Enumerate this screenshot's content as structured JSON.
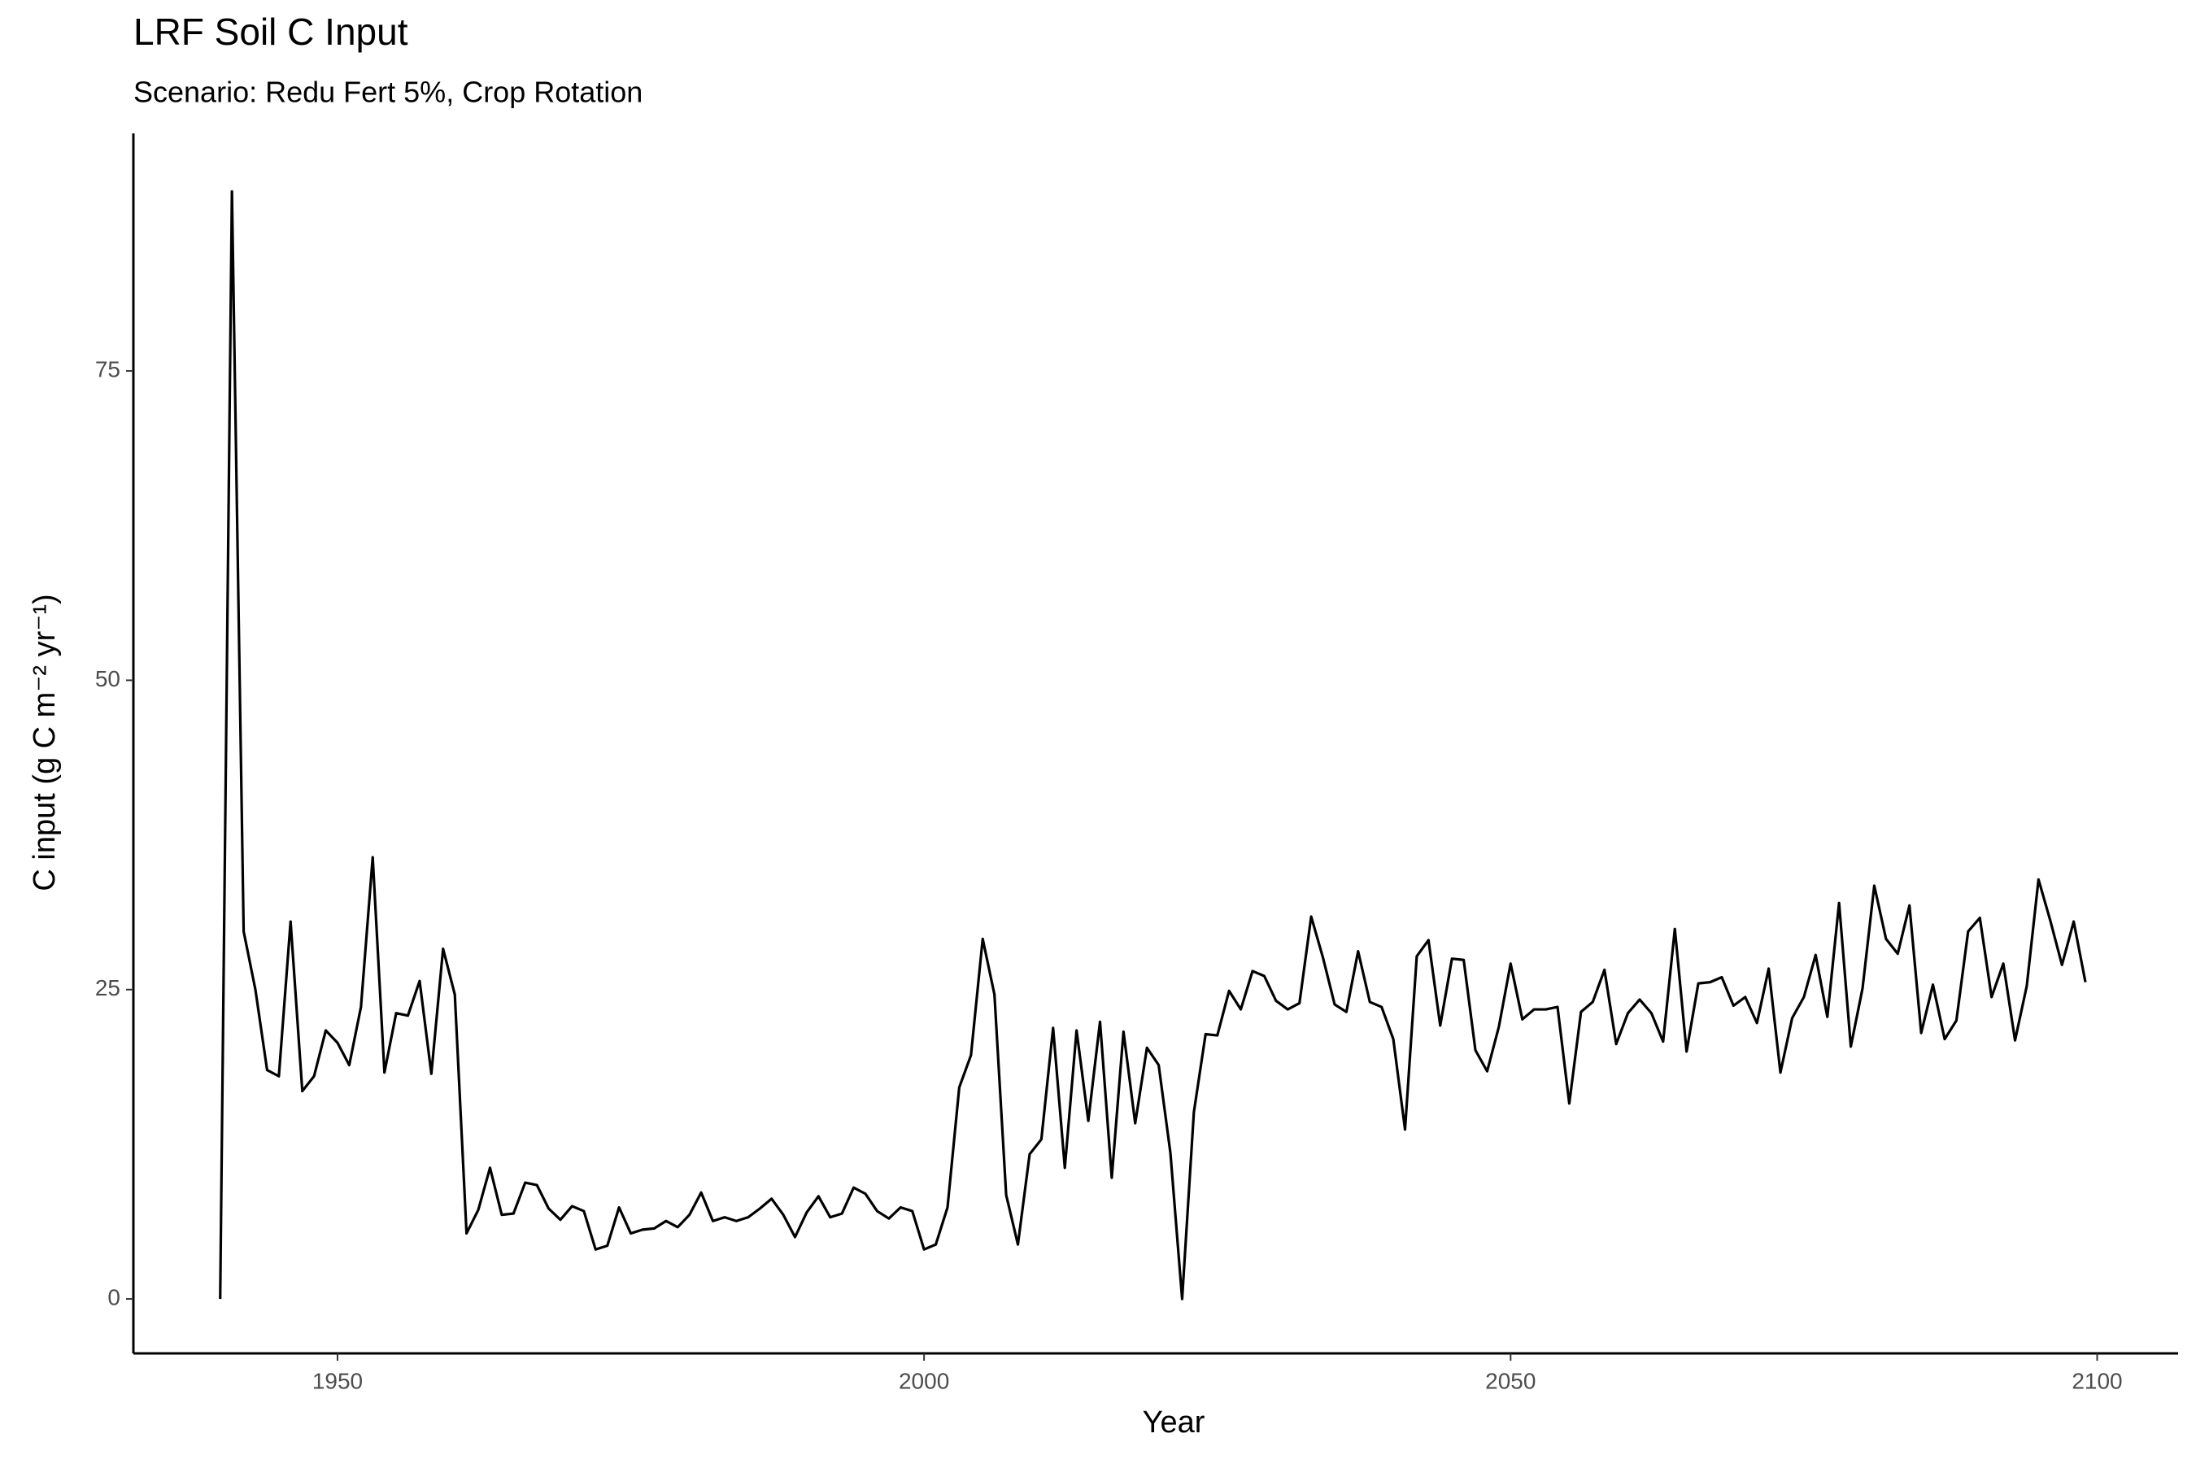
{
  "chart_data": {
    "type": "line",
    "title": "LRF Soil C Input",
    "subtitle": "Scenario: Redu Fert 5%, Crop Rotation",
    "x_label": "Year",
    "y_label": "C input (g C m⁻² yr⁻¹)",
    "x": [
      1940,
      1941,
      1942,
      1943,
      1944,
      1945,
      1946,
      1947,
      1948,
      1949,
      1950,
      1951,
      1952,
      1953,
      1954,
      1955,
      1956,
      1957,
      1958,
      1959,
      1960,
      1961,
      1962,
      1963,
      1964,
      1965,
      1966,
      1967,
      1968,
      1969,
      1970,
      1971,
      1972,
      1973,
      1974,
      1975,
      1976,
      1977,
      1978,
      1979,
      1980,
      1981,
      1982,
      1983,
      1984,
      1985,
      1986,
      1987,
      1988,
      1989,
      1990,
      1991,
      1992,
      1993,
      1994,
      1995,
      1996,
      1997,
      1998,
      1999,
      2000,
      2001,
      2002,
      2003,
      2004,
      2005,
      2006,
      2007,
      2008,
      2009,
      2010,
      2011,
      2012,
      2013,
      2014,
      2015,
      2016,
      2017,
      2018,
      2019,
      2020,
      2021,
      2022,
      2023,
      2024,
      2025,
      2026,
      2027,
      2028,
      2029,
      2030,
      2031,
      2032,
      2033,
      2034,
      2035,
      2036,
      2037,
      2038,
      2039,
      2040,
      2041,
      2042,
      2043,
      2044,
      2045,
      2046,
      2047,
      2048,
      2049,
      2050,
      2051,
      2052,
      2053,
      2054,
      2055,
      2056,
      2057,
      2058,
      2059,
      2060,
      2061,
      2062,
      2063,
      2064,
      2065,
      2066,
      2067,
      2068,
      2069,
      2070,
      2071,
      2072,
      2073,
      2074,
      2075,
      2076,
      2077,
      2078,
      2079,
      2080,
      2081,
      2082,
      2083,
      2084,
      2085,
      2086,
      2087,
      2088,
      2089,
      2090,
      2091,
      2092,
      2093,
      2094,
      2095,
      2096,
      2097,
      2098,
      2099
    ],
    "values": [
      0,
      89.5,
      29.7,
      25,
      18.5,
      18,
      30.5,
      16.8,
      18,
      21.7,
      20.7,
      18.9,
      23.6,
      35.7,
      18.3,
      23.1,
      22.9,
      25.7,
      18.2,
      28.3,
      24.6,
      5.3,
      7.2,
      10.6,
      6.8,
      6.9,
      9.4,
      9.2,
      7.3,
      6.4,
      7.5,
      7.1,
      4.0,
      4.3,
      7.4,
      5.3,
      5.6,
      5.7,
      6.3,
      5.8,
      6.8,
      8.6,
      6.3,
      6.6,
      6.3,
      6.6,
      7.3,
      8.1,
      6.8,
      5.0,
      7.0,
      8.3,
      6.6,
      6.9,
      9.0,
      8.5,
      7.1,
      6.5,
      7.4,
      7.1,
      4.0,
      4.4,
      7.4,
      17.1,
      19.7,
      29.1,
      24.6,
      8.4,
      4.4,
      11.7,
      12.9,
      21.9,
      10.6,
      21.7,
      14.4,
      22.4,
      9.8,
      21.6,
      14.2,
      20.3,
      18.9,
      11.8,
      0,
      15.1,
      21.4,
      21.3,
      24.9,
      23.4,
      26.5,
      26.1,
      24.1,
      23.4,
      23.9,
      30.9,
      27.6,
      23.8,
      23.2,
      28.1,
      24.0,
      23.6,
      21.0,
      13.7,
      27.7,
      29.0,
      22.1,
      27.5,
      27.4,
      20.1,
      18.4,
      22.0,
      27.1,
      22.6,
      23.4,
      23.4,
      23.6,
      15.8,
      23.2,
      24.0,
      26.6,
      20.6,
      23.1,
      24.2,
      23.1,
      20.8,
      29.9,
      20.0,
      25.5,
      25.6,
      26.0,
      23.7,
      24.4,
      22.3,
      26.7,
      18.3,
      22.7,
      24.4,
      27.8,
      22.8,
      32.0,
      20.4,
      25.1,
      33.4,
      29.1,
      27.9,
      31.8,
      21.5,
      25.4,
      21.0,
      22.5,
      29.7,
      30.8,
      24.4,
      27.1,
      20.9,
      25.3,
      33.9,
      30.6,
      27.0,
      30.5,
      25.6
    ],
    "color": "#000000",
    "xlim": [
      1932.6,
      2106.9
    ],
    "xticks": [
      1950,
      2000,
      2050,
      2100
    ],
    "ylim": [
      -4.4,
      94.2
    ],
    "yticks": [
      0,
      25,
      50,
      75
    ],
    "grid": false
  }
}
